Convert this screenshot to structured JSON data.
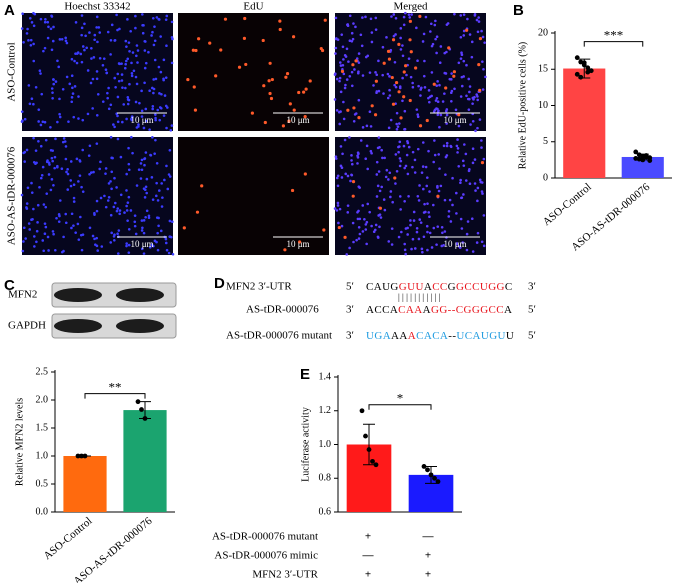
{
  "panels": {
    "a": "A",
    "b": "B",
    "c": "C",
    "d": "D",
    "e": "E"
  },
  "microscopy": {
    "columns": [
      "Hoechst 33342",
      "EdU",
      "Merged"
    ],
    "rows": [
      "ASO-Control",
      "ASO-AS-tDR-000076"
    ],
    "scale_bar": "10 μm"
  },
  "blot": {
    "bands": [
      "MFN2",
      "GAPDH"
    ]
  },
  "sequence": {
    "lines": [
      {
        "label": "MFN2  3′-UTR",
        "start": "5′",
        "end": "3′",
        "segments": [
          {
            "text": "CAUG",
            "color": "#000000"
          },
          {
            "text": "GUU",
            "color": "#e8141c"
          },
          {
            "text": "A",
            "color": "#000000"
          },
          {
            "text": "CC",
            "color": "#e8141c"
          },
          {
            "text": "G",
            "color": "#000000"
          },
          {
            "text": "GCCUGG",
            "color": "#e8141c"
          },
          {
            "text": "C",
            "color": "#000000"
          }
        ]
      },
      {
        "label": "AS-tDR-000076",
        "start": "3′",
        "end": "5′",
        "segments": [
          {
            "text": "ACCA",
            "color": "#000000"
          },
          {
            "text": "CAA",
            "color": "#e8141c"
          },
          {
            "text": "A",
            "color": "#000000"
          },
          {
            "text": "GG--CGGGCC",
            "color": "#e8141c"
          },
          {
            "text": "A",
            "color": "#000000"
          }
        ]
      },
      {
        "label": "AS-tDR-000076 mutant",
        "start": "3′",
        "end": "5′",
        "segments": [
          {
            "text": "UGA",
            "color": "#1e9be0"
          },
          {
            "text": "AA",
            "color": "#000000"
          },
          {
            "text": "A",
            "color": "#e8141c"
          },
          {
            "text": "CACA",
            "color": "#1e9be0"
          },
          {
            "text": "--",
            "color": "#000000"
          },
          {
            "text": "UCAUGU",
            "color": "#1e9be0"
          },
          {
            "text": "U",
            "color": "#000000"
          }
        ]
      }
    ],
    "pairing": "| | |   | |   | | |   | |   |"
  },
  "conditions": [
    {
      "label": "AS-tDR-000076 mutant",
      "signs": [
        "+",
        "—"
      ]
    },
    {
      "label": "AS-tDR-000076 mimic",
      "signs": [
        "—",
        "+"
      ]
    },
    {
      "label": "MFN2  3′-UTR",
      "signs": [
        "+",
        "+"
      ]
    }
  ],
  "chart_data": [
    {
      "type": "bar",
      "y_label": "Relative EdU-positive cells (%)",
      "categories": [
        "ASO-Control",
        "ASO-AS-tDR-000076"
      ],
      "values": [
        15.1,
        2.9
      ],
      "errors": [
        1.3,
        0.4
      ],
      "colors": [
        "#ff4444",
        "#4a4aff"
      ],
      "points": [
        [
          16.6,
          16.0,
          15.6,
          15.2,
          14.8,
          14.3,
          13.9,
          15.9,
          14.6
        ],
        [
          3.6,
          3.2,
          3.0,
          2.9,
          2.8,
          2.7,
          2.6,
          2.5,
          3.1,
          2.4
        ]
      ],
      "ylim": [
        0,
        20
      ],
      "yticks": [
        0,
        5,
        10,
        15,
        20
      ],
      "significance": "***"
    },
    {
      "type": "bar",
      "y_label": "Relative MFN2 levels",
      "categories": [
        "ASO-Control",
        "ASO-AS-tDR-000076"
      ],
      "values": [
        1.0,
        1.82
      ],
      "errors": [
        0,
        0.15
      ],
      "colors": [
        "#ff6a0e",
        "#1ba46f"
      ],
      "points": [
        [
          1.0,
          1.0,
          1.0
        ],
        [
          1.97,
          1.83,
          1.67
        ]
      ],
      "ylim": [
        0,
        2.5
      ],
      "yticks": [
        {
          "value": 0,
          "label": "0.0"
        },
        0.5,
        {
          "value": 1,
          "label": "1.0"
        },
        1.5,
        {
          "value": 2,
          "label": "2.0"
        },
        2.5
      ],
      "significance": "**"
    },
    {
      "type": "bar",
      "y_label": "Luciferase activity",
      "categories": [
        null,
        null
      ],
      "values": [
        1.0,
        0.82
      ],
      "errors": [
        0.12,
        0.05
      ],
      "colors": [
        "#ff1a1a",
        "#1a1aff"
      ],
      "points": [
        [
          1.2,
          1.05,
          0.97,
          0.9,
          0.88
        ],
        [
          0.87,
          0.85,
          0.82,
          0.8,
          0.78
        ]
      ],
      "ylim": [
        0.6,
        1.4
      ],
      "yticks": [
        0.6,
        0.8,
        {
          "value": 1,
          "label": "1.0"
        },
        1.2,
        1.4
      ],
      "significance": "*"
    }
  ]
}
